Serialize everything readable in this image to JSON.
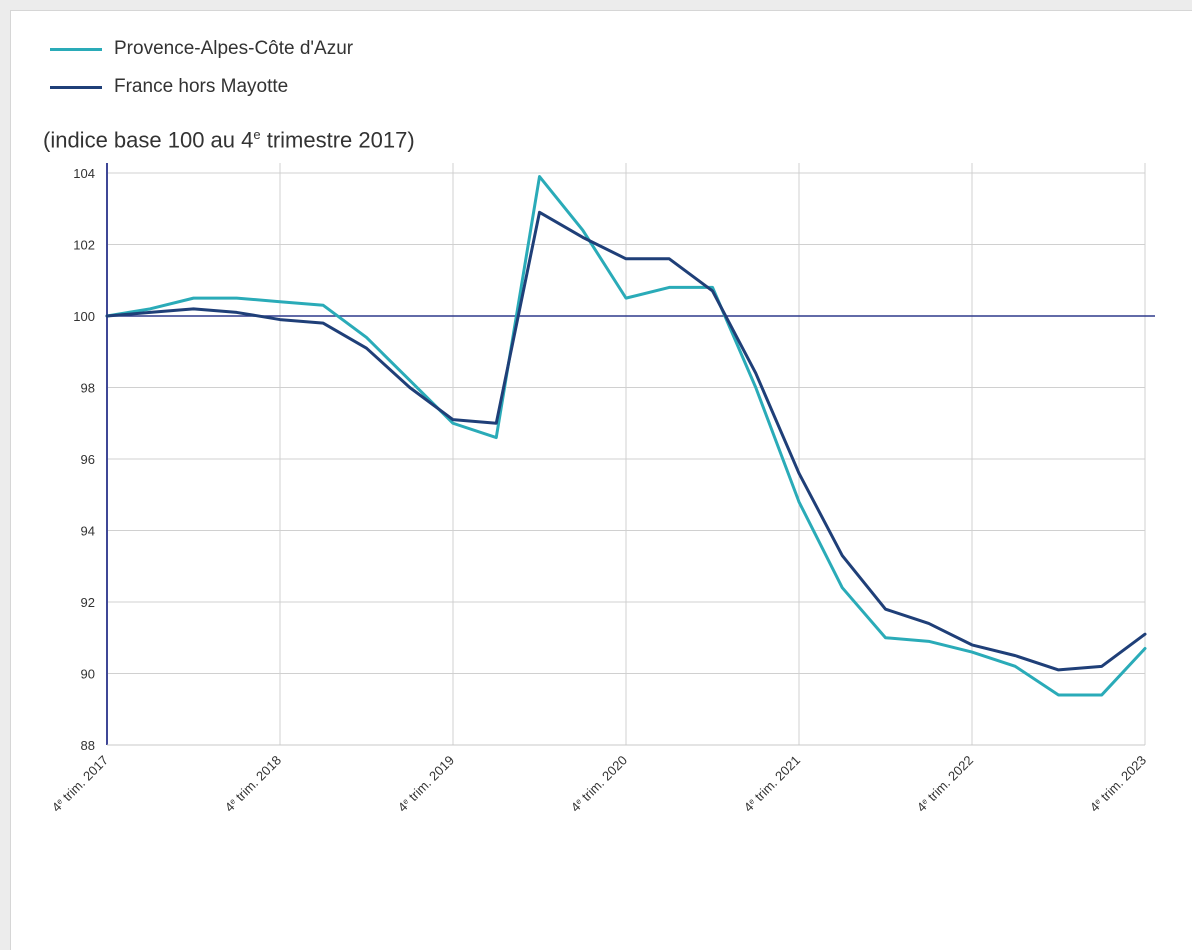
{
  "legend": {
    "series_1": "Provence-Alpes-Côte d'Azur",
    "series_2": "France hors Mayotte"
  },
  "subtitle": {
    "before": "(indice base 100 au 4",
    "sup": "e",
    "after": " trimestre 2017)"
  },
  "colors": {
    "series_1": "#2aabb8",
    "series_2": "#1f3f78",
    "baseline": "#2e3a8c",
    "axis": "#3f4796",
    "grid": "#d0d0d0"
  },
  "chart_data": {
    "type": "line",
    "x": [
      "4e trim. 2017",
      "1er trim. 2018",
      "2e trim. 2018",
      "3e trim. 2018",
      "4e trim. 2018",
      "1er trim. 2019",
      "2e trim. 2019",
      "3e trim. 2019",
      "4e trim. 2019",
      "1er trim. 2020",
      "2e trim. 2020",
      "3e trim. 2020",
      "4e trim. 2020",
      "1er trim. 2021",
      "2e trim. 2021",
      "3e trim. 2021",
      "4e trim. 2021",
      "1er trim. 2022",
      "2e trim. 2022",
      "3e trim. 2022",
      "4e trim. 2022",
      "1er trim. 2023",
      "2e trim. 2023",
      "3e trim. 2023",
      "4e trim. 2023"
    ],
    "x_tick_labels": [
      {
        "index": 0,
        "trim": "4",
        "sup": "e",
        "rest": " trim. 2017"
      },
      {
        "index": 4,
        "trim": "4",
        "sup": "e",
        "rest": " trim. 2018"
      },
      {
        "index": 8,
        "trim": "4",
        "sup": "e",
        "rest": " trim. 2019"
      },
      {
        "index": 12,
        "trim": "4",
        "sup": "e",
        "rest": " trim. 2020"
      },
      {
        "index": 16,
        "trim": "4",
        "sup": "e",
        "rest": " trim. 2021"
      },
      {
        "index": 20,
        "trim": "4",
        "sup": "e",
        "rest": " trim. 2022"
      },
      {
        "index": 24,
        "trim": "4",
        "sup": "e",
        "rest": " trim. 2023"
      }
    ],
    "series": [
      {
        "name": "Provence-Alpes-Côte d'Azur",
        "values": [
          100,
          100.2,
          100.5,
          100.5,
          100.4,
          100.3,
          99.4,
          98.2,
          97.0,
          96.6,
          103.9,
          102.4,
          100.5,
          100.8,
          100.8,
          98.0,
          94.8,
          92.4,
          91.0,
          90.9,
          90.6,
          90.2,
          89.4,
          89.4,
          90.7
        ]
      },
      {
        "name": "France hors Mayotte",
        "values": [
          100,
          100.1,
          100.2,
          100.1,
          99.9,
          99.8,
          99.1,
          98.0,
          97.1,
          97.0,
          102.9,
          102.2,
          101.6,
          101.6,
          100.7,
          98.4,
          95.6,
          93.3,
          91.8,
          91.4,
          90.8,
          90.5,
          90.1,
          90.2,
          91.1
        ]
      }
    ],
    "y_ticks": [
      88,
      90,
      92,
      94,
      96,
      98,
      100,
      102,
      104
    ],
    "ylim": [
      88,
      104.5
    ],
    "baseline": 100,
    "grid": true,
    "legend_position": "top-left"
  }
}
